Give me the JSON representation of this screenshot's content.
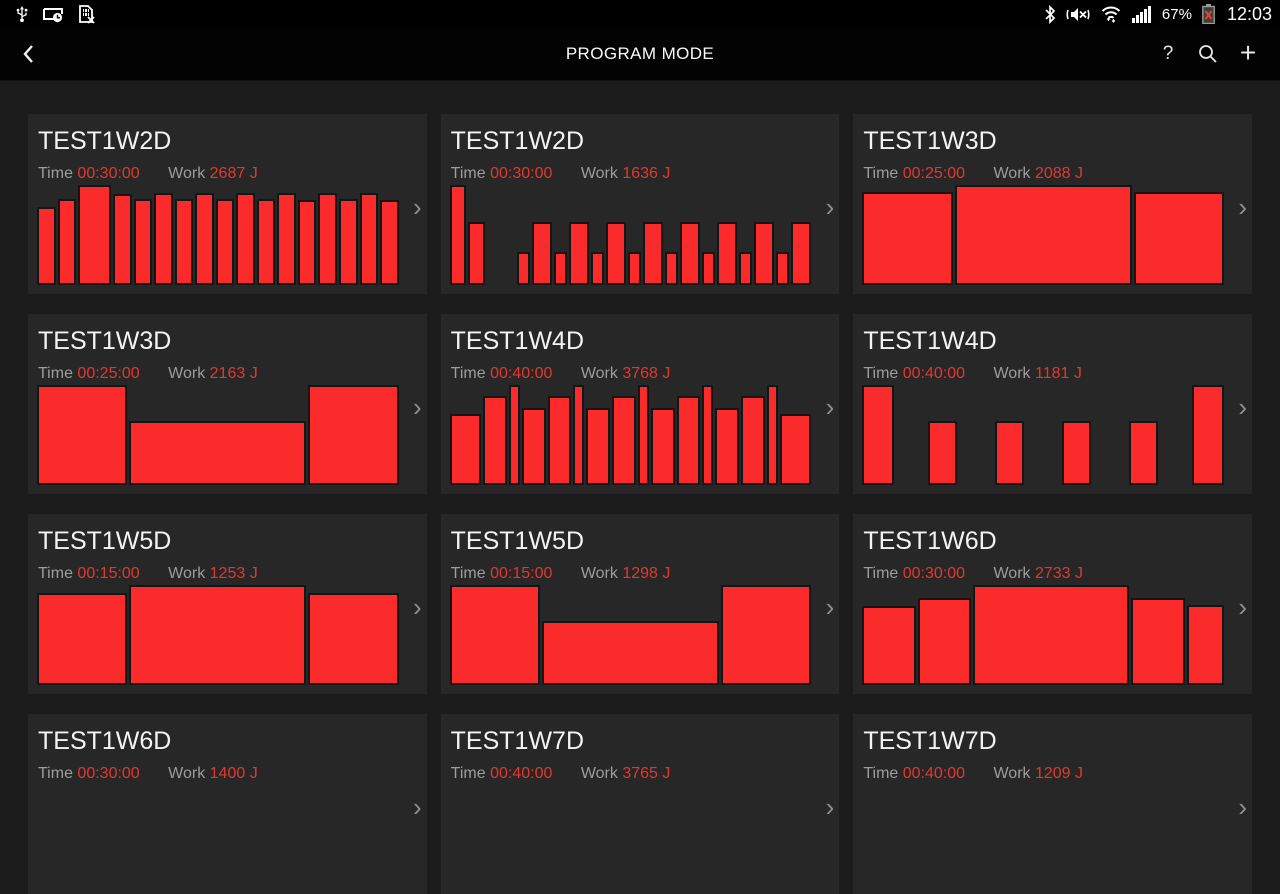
{
  "status_bar": {
    "left_icons": [
      "usb-icon",
      "screen-timeout-icon",
      "no-sim-icon"
    ],
    "right_icons": [
      "bluetooth-icon",
      "mute-icon",
      "wifi-icon",
      "signal-icon",
      "battery-icon"
    ],
    "battery_percent": "67%",
    "time": "12:03"
  },
  "action_bar": {
    "title": "PROGRAM MODE",
    "help_glyph": "?",
    "add_glyph": "+"
  },
  "labels": {
    "time": "Time",
    "work": "Work"
  },
  "chevron_glyph": "›",
  "colors": {
    "bar_red": "#fb2b2b",
    "value_red": "#e0392e",
    "card_bg": "#272727",
    "page_bg": "#1c1c1c",
    "bar_outline": "#151515"
  },
  "cards": [
    {
      "title": "TEST1W2D",
      "time": "00:30:00",
      "work": "2687 J",
      "bars": [
        [
          1,
          78
        ],
        [
          1,
          86
        ],
        [
          2,
          100
        ],
        [
          1,
          91
        ],
        [
          1,
          86
        ],
        [
          1,
          92
        ],
        [
          1,
          86
        ],
        [
          1,
          92
        ],
        [
          1,
          86
        ],
        [
          1,
          92
        ],
        [
          1,
          86
        ],
        [
          1,
          92
        ],
        [
          1,
          85
        ],
        [
          1,
          92
        ],
        [
          1,
          86
        ],
        [
          1,
          92
        ],
        [
          1,
          85
        ]
      ]
    },
    {
      "title": "TEST1W2D",
      "time": "00:30:00",
      "work": "1636 J",
      "bars": [
        [
          1,
          100
        ],
        [
          1,
          63
        ],
        [
          2.2,
          0
        ],
        [
          0.7,
          33
        ],
        [
          1.25,
          63
        ],
        [
          0.7,
          33
        ],
        [
          1.25,
          63
        ],
        [
          0.7,
          33
        ],
        [
          1.25,
          63
        ],
        [
          0.7,
          33
        ],
        [
          1.25,
          63
        ],
        [
          0.7,
          33
        ],
        [
          1.25,
          63
        ],
        [
          0.7,
          33
        ],
        [
          1.25,
          63
        ],
        [
          0.7,
          33
        ],
        [
          1.25,
          63
        ],
        [
          0.7,
          33
        ],
        [
          1.25,
          63
        ]
      ]
    },
    {
      "title": "TEST1W3D",
      "time": "00:25:00",
      "work": "2088 J",
      "bars": [
        [
          1.5,
          93
        ],
        [
          3,
          100
        ],
        [
          1.5,
          93
        ]
      ]
    },
    {
      "title": "TEST1W3D",
      "time": "00:25:00",
      "work": "2163 J",
      "bars": [
        [
          1.5,
          100
        ],
        [
          3,
          64
        ],
        [
          1.5,
          100
        ]
      ]
    },
    {
      "title": "TEST1W4D",
      "time": "00:40:00",
      "work": "3768 J",
      "bars": [
        [
          1.4,
          71
        ],
        [
          1,
          89
        ],
        [
          0.35,
          100
        ],
        [
          1,
          77
        ],
        [
          1,
          89
        ],
        [
          0.35,
          100
        ],
        [
          1,
          77
        ],
        [
          1,
          89
        ],
        [
          0.35,
          100
        ],
        [
          1,
          77
        ],
        [
          1,
          89
        ],
        [
          0.35,
          100
        ],
        [
          1,
          77
        ],
        [
          1,
          89
        ],
        [
          0.35,
          100
        ],
        [
          1.4,
          71
        ]
      ]
    },
    {
      "title": "TEST1W4D",
      "time": "00:40:00",
      "work": "1181 J",
      "bars": [
        [
          1,
          100
        ],
        [
          1.05,
          0
        ],
        [
          0.9,
          64
        ],
        [
          1.2,
          0
        ],
        [
          0.9,
          64
        ],
        [
          1.2,
          0
        ],
        [
          0.9,
          64
        ],
        [
          1.2,
          0
        ],
        [
          0.9,
          64
        ],
        [
          1.05,
          0
        ],
        [
          1,
          100
        ]
      ]
    },
    {
      "title": "TEST1W5D",
      "time": "00:15:00",
      "work": "1253 J",
      "bars": [
        [
          1.5,
          92
        ],
        [
          3,
          100
        ],
        [
          1.5,
          92
        ]
      ]
    },
    {
      "title": "TEST1W5D",
      "time": "00:15:00",
      "work": "1298 J",
      "bars": [
        [
          1.5,
          100
        ],
        [
          3,
          64
        ],
        [
          1.5,
          100
        ]
      ]
    },
    {
      "title": "TEST1W6D",
      "time": "00:30:00",
      "work": "2733 J",
      "bars": [
        [
          1.5,
          79
        ],
        [
          1.5,
          87
        ],
        [
          4.6,
          100
        ],
        [
          1.5,
          87
        ],
        [
          1,
          80
        ]
      ]
    },
    {
      "title": "TEST1W6D",
      "time": "00:30:00",
      "work": "1400 J",
      "bars": []
    },
    {
      "title": "TEST1W7D",
      "time": "00:40:00",
      "work": "3765 J",
      "bars": []
    },
    {
      "title": "TEST1W7D",
      "time": "00:40:00",
      "work": "1209 J",
      "bars": []
    }
  ]
}
